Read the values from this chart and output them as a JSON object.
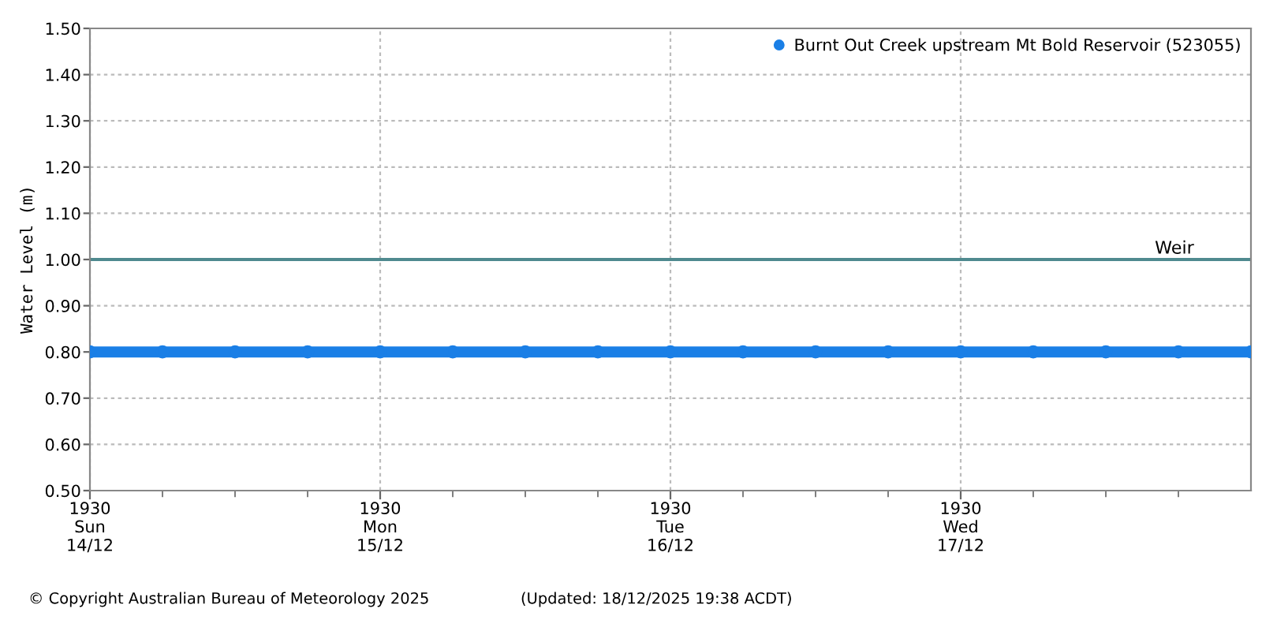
{
  "chart_data": {
    "type": "line",
    "ylabel": "Water Level (m)",
    "categories": [
      "1930\nSun\n14/12",
      null,
      null,
      null,
      "1930\nMon\n15/12",
      null,
      null,
      null,
      "1930\nTue\n16/12",
      null,
      null,
      null,
      "1930\nWed\n17/12",
      null,
      null,
      null,
      null
    ],
    "series": [
      {
        "name": "Burnt Out Creek upstream Mt Bold Reservoir (523055)",
        "color": "#1a7fe6",
        "values": [
          0.8,
          0.8,
          0.8,
          0.8,
          0.8,
          0.8,
          0.8,
          0.8,
          0.8,
          0.8,
          0.8,
          0.8,
          0.8,
          0.8,
          0.8,
          0.8,
          0.8
        ]
      }
    ],
    "ylim": [
      0.5,
      1.5
    ],
    "yticks": [
      {
        "value": 0.5,
        "label": "0.50"
      },
      {
        "value": 0.6,
        "label": "0.60"
      },
      {
        "value": 0.7,
        "label": "0.70"
      },
      {
        "value": 0.8,
        "label": "0.80"
      },
      {
        "value": 0.9,
        "label": "0.90"
      },
      {
        "value": 1.0,
        "label": "1.00"
      },
      {
        "value": 1.1,
        "label": "1.10"
      },
      {
        "value": 1.2,
        "label": "1.20"
      },
      {
        "value": 1.3,
        "label": "1.30"
      },
      {
        "value": 1.4,
        "label": "1.40"
      },
      {
        "value": 1.5,
        "label": "1.50"
      }
    ],
    "ref_lines": [
      {
        "axis": "y",
        "value": 1.0,
        "label": "Weir",
        "color": "#4f8a8f"
      }
    ],
    "annotations": [
      "© Copyright Australian Bureau of Meteorology 2025",
      "(Updated: 18/12/2025 19:38 ACDT)"
    ],
    "grid": true,
    "legend": "top right",
    "marker": "circle",
    "line_style": "solid"
  }
}
